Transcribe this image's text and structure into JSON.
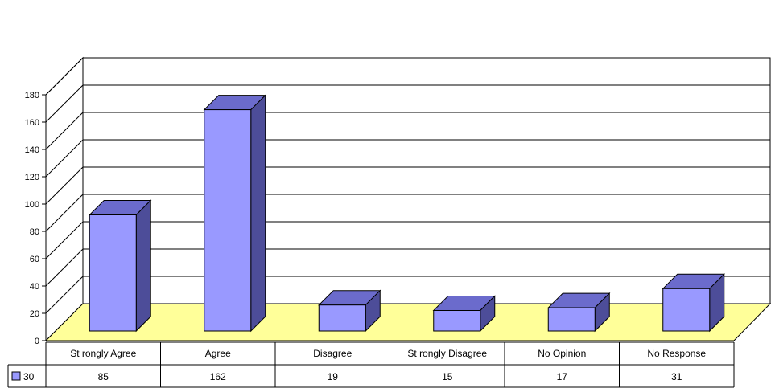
{
  "chart_data": {
    "type": "bar",
    "title": "",
    "xlabel": "",
    "ylabel": "",
    "categories": [
      "St rongly Agree",
      "Agree",
      "Disagree",
      "St rongly Disagree",
      "No Opinion",
      "No Response"
    ],
    "series": [
      {
        "name": "30",
        "values": [
          85,
          162,
          19,
          15,
          17,
          31
        ],
        "color": "#9999ff"
      }
    ],
    "ylim": [
      0,
      180
    ],
    "yticks": [
      0,
      20,
      40,
      60,
      80,
      100,
      120,
      140,
      160,
      180
    ],
    "grid": true,
    "floor_color": "#ffff99",
    "legend": "data-table-left"
  }
}
